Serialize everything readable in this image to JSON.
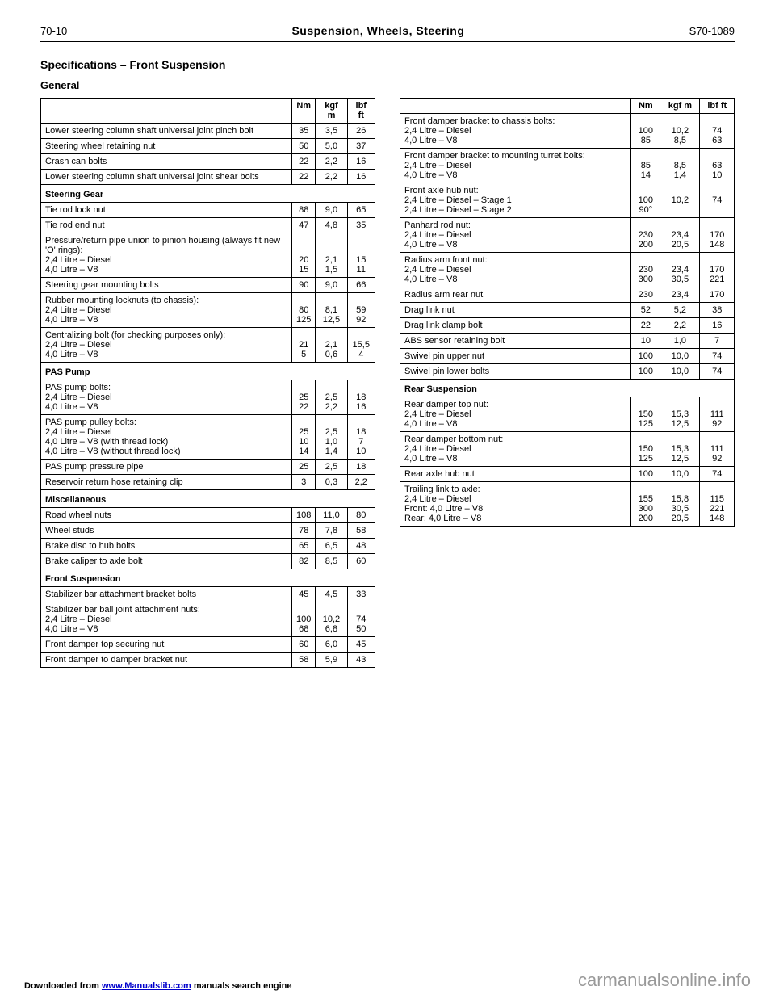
{
  "header": {
    "page_num": "70-10",
    "doc_title": "Suspension, Wheels, Steering",
    "page_id": "S70-1089"
  },
  "section": {
    "title": "Specifications – Front Suspension",
    "subtitle": "General"
  },
  "table1": {
    "columns": [
      "",
      "Nm",
      "kgf m",
      "lbf ft"
    ],
    "rows": [
      [
        {
          "t": "Lower steering column shaft universal joint pinch bolt"
        },
        {
          "t": "35",
          "c": "num"
        },
        {
          "t": "3,5",
          "c": "num"
        },
        {
          "t": "26",
          "c": "num"
        }
      ],
      [
        {
          "t": "Steering wheel retaining nut"
        },
        {
          "t": "50",
          "c": "num"
        },
        {
          "t": "5,0",
          "c": "num"
        },
        {
          "t": "37",
          "c": "num"
        }
      ],
      [
        {
          "t": "Crash can bolts"
        },
        {
          "t": "22",
          "c": "num"
        },
        {
          "t": "2,2",
          "c": "num"
        },
        {
          "t": "16",
          "c": "num"
        }
      ],
      [
        {
          "t": "Lower steering column shaft universal joint shear bolts"
        },
        {
          "t": "22",
          "c": "num"
        },
        {
          "t": "2,2",
          "c": "num"
        },
        {
          "t": "16",
          "c": "num"
        }
      ],
      [
        {
          "t": "Steering Gear",
          "colspan": 4,
          "cls": "subhead"
        }
      ],
      [
        {
          "t": "Tie rod lock nut"
        },
        {
          "t": "88",
          "c": "num"
        },
        {
          "t": "9,0",
          "c": "num"
        },
        {
          "t": "65",
          "c": "num"
        }
      ],
      [
        {
          "t": "Tie rod end nut"
        },
        {
          "t": "47",
          "c": "num"
        },
        {
          "t": "4,8",
          "c": "num"
        },
        {
          "t": "35",
          "c": "num"
        }
      ],
      [
        {
          "t": "Pressure/return pipe union to pinion housing (always fit new 'O' rings):\n2,4 Litre – Diesel\n4,0 Litre – V8"
        },
        {
          "t": "\n\n20\n15",
          "c": "num"
        },
        {
          "t": "\n\n2,1\n1,5",
          "c": "num"
        },
        {
          "t": "\n\n15\n11",
          "c": "num"
        }
      ],
      [
        {
          "t": "Steering gear mounting bolts"
        },
        {
          "t": "90",
          "c": "num"
        },
        {
          "t": "9,0",
          "c": "num"
        },
        {
          "t": "66",
          "c": "num"
        }
      ],
      [
        {
          "t": "Rubber mounting locknuts (to chassis):\n2,4 Litre – Diesel\n4,0 Litre – V8"
        },
        {
          "t": "\n80\n125",
          "c": "num"
        },
        {
          "t": "\n8,1\n12,5",
          "c": "num"
        },
        {
          "t": "\n59\n92",
          "c": "num"
        }
      ],
      [
        {
          "t": "Centralizing bolt (for checking purposes only):\n2,4 Litre – Diesel\n4,0 Litre – V8"
        },
        {
          "t": "\n21\n5",
          "c": "num"
        },
        {
          "t": "\n2,1\n0,6",
          "c": "num"
        },
        {
          "t": "\n15,5\n4",
          "c": "num"
        }
      ],
      [
        {
          "t": "PAS Pump",
          "colspan": 4,
          "cls": "subhead"
        }
      ],
      [
        {
          "t": "PAS pump bolts:\n2,4 Litre – Diesel\n4,0 Litre – V8"
        },
        {
          "t": "\n25\n22",
          "c": "num"
        },
        {
          "t": "\n2,5\n2,2",
          "c": "num"
        },
        {
          "t": "\n18\n16",
          "c": "num"
        }
      ],
      [
        {
          "t": "PAS pump pulley bolts:\n2,4 Litre – Diesel\n4,0 Litre – V8 (with thread lock)\n4,0 Litre – V8 (without thread lock)"
        },
        {
          "t": "\n25\n10\n14",
          "c": "num"
        },
        {
          "t": "\n2,5\n1,0\n1,4",
          "c": "num"
        },
        {
          "t": "\n18\n7\n10",
          "c": "num"
        }
      ],
      [
        {
          "t": "PAS pump pressure pipe"
        },
        {
          "t": "25",
          "c": "num"
        },
        {
          "t": "2,5",
          "c": "num"
        },
        {
          "t": "18",
          "c": "num"
        }
      ],
      [
        {
          "t": "Reservoir return hose retaining clip"
        },
        {
          "t": "3",
          "c": "num"
        },
        {
          "t": "0,3",
          "c": "num"
        },
        {
          "t": "2,2",
          "c": "num"
        }
      ],
      [
        {
          "t": "Miscellaneous",
          "colspan": 4,
          "cls": "subhead"
        }
      ],
      [
        {
          "t": "Road wheel nuts"
        },
        {
          "t": "108",
          "c": "num"
        },
        {
          "t": "11,0",
          "c": "num"
        },
        {
          "t": "80",
          "c": "num"
        }
      ],
      [
        {
          "t": "Wheel studs"
        },
        {
          "t": "78",
          "c": "num"
        },
        {
          "t": "7,8",
          "c": "num"
        },
        {
          "t": "58",
          "c": "num"
        }
      ],
      [
        {
          "t": "Brake disc to hub bolts"
        },
        {
          "t": "65",
          "c": "num"
        },
        {
          "t": "6,5",
          "c": "num"
        },
        {
          "t": "48",
          "c": "num"
        }
      ],
      [
        {
          "t": "Brake caliper to axle bolt"
        },
        {
          "t": "82",
          "c": "num"
        },
        {
          "t": "8,5",
          "c": "num"
        },
        {
          "t": "60",
          "c": "num"
        }
      ],
      [
        {
          "t": "Front Suspension",
          "colspan": 4,
          "cls": "subhead"
        }
      ],
      [
        {
          "t": "Stabilizer bar attachment bracket bolts"
        },
        {
          "t": "45",
          "c": "num"
        },
        {
          "t": "4,5",
          "c": "num"
        },
        {
          "t": "33",
          "c": "num"
        }
      ],
      [
        {
          "t": "Stabilizer bar ball joint attachment nuts:\n2,4 Litre – Diesel\n4,0 Litre – V8"
        },
        {
          "t": "\n100\n68",
          "c": "num"
        },
        {
          "t": "\n10,2\n6,8",
          "c": "num"
        },
        {
          "t": "\n74\n50",
          "c": "num"
        }
      ],
      [
        {
          "t": "Front damper top securing nut"
        },
        {
          "t": "60",
          "c": "num"
        },
        {
          "t": "6,0",
          "c": "num"
        },
        {
          "t": "45",
          "c": "num"
        }
      ],
      [
        {
          "t": "Front damper to damper bracket nut"
        },
        {
          "t": "58",
          "c": "num"
        },
        {
          "t": "5,9",
          "c": "num"
        },
        {
          "t": "43",
          "c": "num"
        }
      ]
    ]
  },
  "table2": {
    "columns": [
      "",
      "Nm",
      "kgf m",
      "lbf ft"
    ],
    "rows": [
      [
        {
          "t": "Front damper bracket to chassis bolts:\n2,4 Litre – Diesel\n4,0 Litre – V8"
        },
        {
          "t": "\n100\n85",
          "c": "num"
        },
        {
          "t": "\n10,2\n8,5",
          "c": "num"
        },
        {
          "t": "\n74\n63",
          "c": "num"
        }
      ],
      [
        {
          "t": "Front damper bracket to mounting turret bolts:\n2,4 Litre – Diesel\n4,0 Litre – V8"
        },
        {
          "t": "\n85\n14",
          "c": "num"
        },
        {
          "t": "\n8,5\n1,4",
          "c": "num"
        },
        {
          "t": "\n63\n10",
          "c": "num"
        }
      ],
      [
        {
          "t": "Front axle hub nut:\n2,4 Litre – Diesel – Stage 1\n2,4 Litre – Diesel – Stage 2"
        },
        {
          "t": "\n100\n90°",
          "c": "num"
        },
        {
          "t": "\n10,2",
          "c": "num"
        },
        {
          "t": "\n74",
          "c": "num"
        }
      ],
      [
        {
          "t": "Panhard rod nut:\n2,4 Litre – Diesel\n4,0 Litre – V8"
        },
        {
          "t": "\n230\n200",
          "c": "num"
        },
        {
          "t": "\n23,4\n20,5",
          "c": "num"
        },
        {
          "t": "\n170\n148",
          "c": "num"
        }
      ],
      [
        {
          "t": "Radius arm front nut:\n2,4 Litre – Diesel\n4,0 Litre – V8"
        },
        {
          "t": "\n230\n300",
          "c": "num"
        },
        {
          "t": "\n23,4\n30,5",
          "c": "num"
        },
        {
          "t": "\n170\n221",
          "c": "num"
        }
      ],
      [
        {
          "t": "Radius arm rear nut"
        },
        {
          "t": "230",
          "c": "num"
        },
        {
          "t": "23,4",
          "c": "num"
        },
        {
          "t": "170",
          "c": "num"
        }
      ],
      [
        {
          "t": "Drag link nut"
        },
        {
          "t": "52",
          "c": "num"
        },
        {
          "t": "5,2",
          "c": "num"
        },
        {
          "t": "38",
          "c": "num"
        }
      ],
      [
        {
          "t": "Drag link clamp bolt"
        },
        {
          "t": "22",
          "c": "num"
        },
        {
          "t": "2,2",
          "c": "num"
        },
        {
          "t": "16",
          "c": "num"
        }
      ],
      [
        {
          "t": "ABS sensor retaining bolt"
        },
        {
          "t": "10",
          "c": "num"
        },
        {
          "t": "1,0",
          "c": "num"
        },
        {
          "t": "7",
          "c": "num"
        }
      ],
      [
        {
          "t": "Swivel pin upper nut"
        },
        {
          "t": "100",
          "c": "num"
        },
        {
          "t": "10,0",
          "c": "num"
        },
        {
          "t": "74",
          "c": "num"
        }
      ],
      [
        {
          "t": "Swivel pin lower bolts"
        },
        {
          "t": "100",
          "c": "num"
        },
        {
          "t": "10,0",
          "c": "num"
        },
        {
          "t": "74",
          "c": "num"
        }
      ],
      [
        {
          "t": "Rear Suspension",
          "colspan": 4,
          "cls": "subhead"
        }
      ],
      [
        {
          "t": "Rear damper top nut:\n2,4 Litre – Diesel\n4,0 Litre – V8"
        },
        {
          "t": "\n150\n125",
          "c": "num"
        },
        {
          "t": "\n15,3\n12,5",
          "c": "num"
        },
        {
          "t": "\n111\n92",
          "c": "num"
        }
      ],
      [
        {
          "t": "Rear damper bottom nut:\n2,4 Litre – Diesel\n4,0 Litre – V8"
        },
        {
          "t": "\n150\n125",
          "c": "num"
        },
        {
          "t": "\n15,3\n12,5",
          "c": "num"
        },
        {
          "t": "\n111\n92",
          "c": "num"
        }
      ],
      [
        {
          "t": "Rear axle hub nut"
        },
        {
          "t": "100",
          "c": "num"
        },
        {
          "t": "10,0",
          "c": "num"
        },
        {
          "t": "74",
          "c": "num"
        }
      ],
      [
        {
          "t": "Trailing link to axle:\n2,4 Litre – Diesel\nFront: 4,0 Litre – V8\nRear: 4,0 Litre – V8"
        },
        {
          "t": "\n155\n300\n200",
          "c": "num"
        },
        {
          "t": "\n15,8\n30,5\n20,5",
          "c": "num"
        },
        {
          "t": "\n115\n221\n148",
          "c": "num"
        }
      ]
    ]
  },
  "footer": {
    "prefix": "Downloaded from ",
    "link_text": "www.Manualslib.com",
    "suffix": " manuals search engine"
  },
  "watermark": "carmanualsonline.info"
}
